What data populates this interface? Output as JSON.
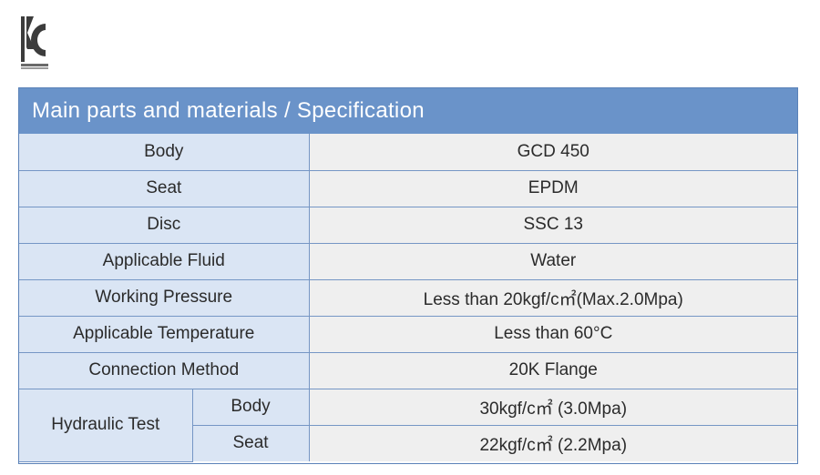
{
  "logo": {
    "icon": "kc-certification-mark",
    "color": "#3c3c3c"
  },
  "table": {
    "title": "Main parts and materials / Specification",
    "rows": [
      {
        "label": "Body",
        "value": "GCD 450"
      },
      {
        "label": "Seat",
        "value": "EPDM"
      },
      {
        "label": "Disc",
        "value": "SSC 13"
      },
      {
        "label": "Applicable Fluid",
        "value": "Water"
      },
      {
        "label": "Working Pressure",
        "value": "Less than 20kgf/c㎡(Max.2.0Mpa)"
      },
      {
        "label": "Applicable Temperature",
        "value": "Less than 60°C"
      },
      {
        "label": "Connection Method",
        "value": "20K Flange"
      }
    ],
    "group": {
      "label": "Hydraulic Test",
      "rows": [
        {
          "label": "Body",
          "value": "30kgf/c㎡ (3.0Mpa)"
        },
        {
          "label": "Seat",
          "value": "22kgf/c㎡ (2.2Mpa)"
        }
      ]
    },
    "colors": {
      "header": "#6a93c9",
      "label_cell": "#dae5f4",
      "value_cell": "#efefef",
      "border": "#7596c5"
    }
  }
}
